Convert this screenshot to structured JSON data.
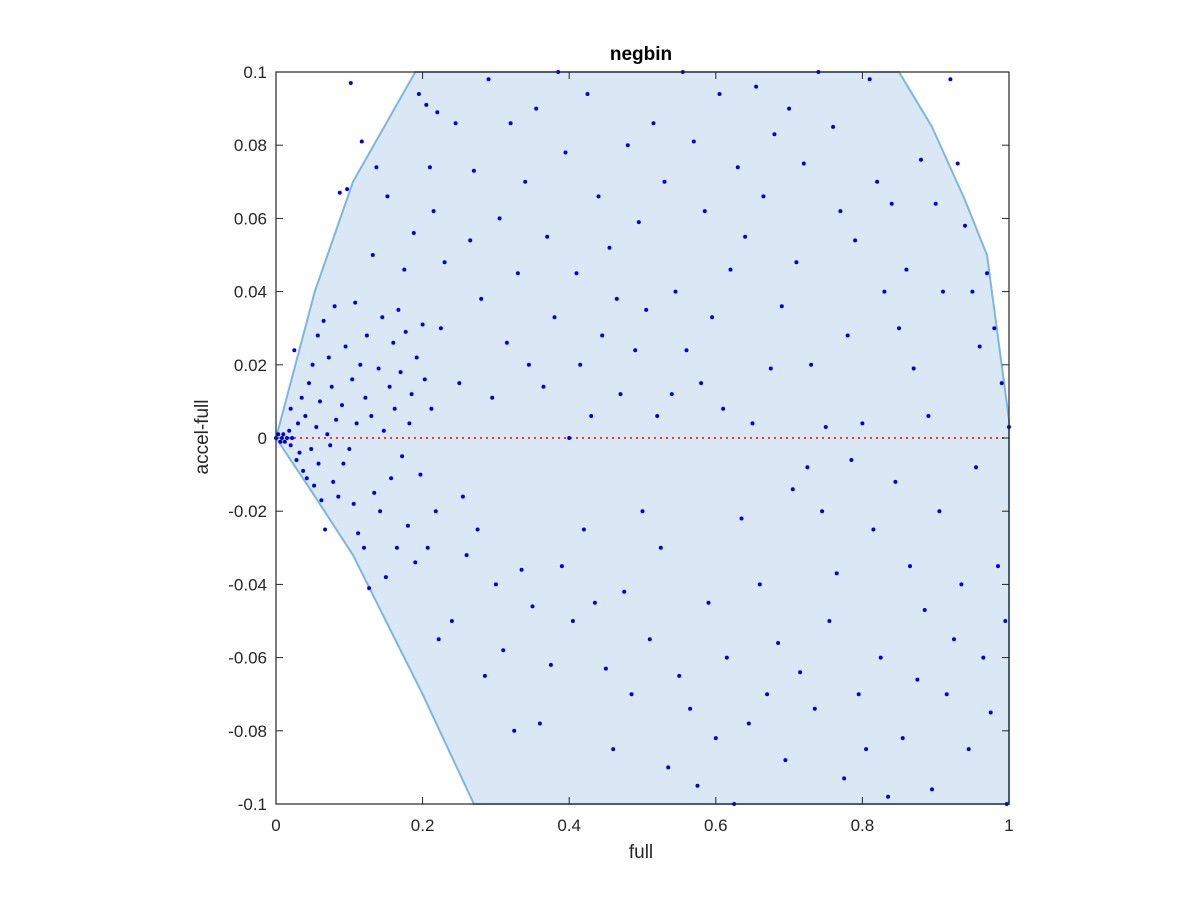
{
  "chart_data": {
    "type": "scatter",
    "title": "negbin",
    "xlabel": "full",
    "ylabel": "accel-full",
    "xlim": [
      0,
      1
    ],
    "ylim": [
      -0.1,
      0.1
    ],
    "x_ticks": [
      0,
      0.2,
      0.4,
      0.6,
      0.8,
      1
    ],
    "x_tick_labels": [
      "0",
      "0.2",
      "0.4",
      "0.6",
      "0.8",
      "1"
    ],
    "y_ticks": [
      -0.1,
      -0.08,
      -0.06,
      -0.04,
      -0.02,
      0,
      0.02,
      0.04,
      0.06,
      0.08,
      0.1
    ],
    "y_tick_labels": [
      "-0.1",
      "-0.08",
      "-0.06",
      "-0.04",
      "-0.02",
      "0",
      "0.02",
      "0.04",
      "0.06",
      "0.08",
      "0.1"
    ],
    "grid": false,
    "colors": {
      "points": "#0000e6",
      "region_fill": "#d9e8f4",
      "region_edge": "#7fb6dd",
      "zero_line": "#e83a3a",
      "axes": "#262626"
    },
    "region": {
      "description": "shaded feasible region",
      "boundary": [
        [
          0.0,
          0.0
        ],
        [
          0.053,
          0.04
        ],
        [
          0.105,
          0.07
        ],
        [
          0.19,
          0.1
        ],
        [
          0.85,
          0.1
        ],
        [
          0.895,
          0.085
        ],
        [
          0.94,
          0.065
        ],
        [
          0.97,
          0.05
        ],
        [
          1.0,
          0.005
        ],
        [
          1.0,
          -0.1
        ],
        [
          0.27,
          -0.1
        ],
        [
          0.2,
          -0.07
        ],
        [
          0.15,
          -0.05
        ],
        [
          0.105,
          -0.032
        ],
        [
          0.05,
          -0.015
        ],
        [
          0.0,
          0.0
        ]
      ]
    },
    "zero_line": {
      "y": 0,
      "style": "dotted"
    },
    "series": [
      {
        "points": [
          [
            0.0,
            0.0
          ],
          [
            0.003,
            0.001
          ],
          [
            0.006,
            -0.001
          ],
          [
            0.008,
            0.0
          ],
          [
            0.01,
            0.001
          ],
          [
            0.012,
            -0.001
          ],
          [
            0.015,
            0.0
          ],
          [
            0.018,
            0.002
          ],
          [
            0.02,
            -0.002
          ],
          [
            0.022,
            0.0
          ],
          [
            0.02,
            0.008
          ],
          [
            0.025,
            0.024
          ],
          [
            0.028,
            -0.006
          ],
          [
            0.03,
            0.004
          ],
          [
            0.032,
            -0.004
          ],
          [
            0.035,
            0.011
          ],
          [
            0.037,
            -0.009
          ],
          [
            0.04,
            0.006
          ],
          [
            0.042,
            -0.011
          ],
          [
            0.045,
            0.015
          ],
          [
            0.048,
            -0.003
          ],
          [
            0.05,
            0.02
          ],
          [
            0.052,
            -0.013
          ],
          [
            0.055,
            0.003
          ],
          [
            0.057,
            0.028
          ],
          [
            0.058,
            -0.007
          ],
          [
            0.06,
            0.01
          ],
          [
            0.062,
            -0.017
          ],
          [
            0.065,
            0.032
          ],
          [
            0.067,
            -0.025
          ],
          [
            0.07,
            0.001
          ],
          [
            0.072,
            0.022
          ],
          [
            0.074,
            -0.002
          ],
          [
            0.076,
            0.014
          ],
          [
            0.078,
            -0.012
          ],
          [
            0.08,
            0.036
          ],
          [
            0.082,
            0.005
          ],
          [
            0.085,
            -0.016
          ],
          [
            0.087,
            0.067
          ],
          [
            0.09,
            0.009
          ],
          [
            0.092,
            -0.007
          ],
          [
            0.095,
            0.025
          ],
          [
            0.097,
            0.068
          ],
          [
            0.1,
            -0.003
          ],
          [
            0.102,
            0.097
          ],
          [
            0.104,
            0.016
          ],
          [
            0.106,
            -0.018
          ],
          [
            0.108,
            0.037
          ],
          [
            0.11,
            0.004
          ],
          [
            0.112,
            -0.026
          ],
          [
            0.115,
            0.02
          ],
          [
            0.117,
            0.081
          ],
          [
            0.12,
            -0.03
          ],
          [
            0.122,
            0.011
          ],
          [
            0.124,
            0.028
          ],
          [
            0.127,
            -0.041
          ],
          [
            0.13,
            0.006
          ],
          [
            0.132,
            0.05
          ],
          [
            0.134,
            -0.015
          ],
          [
            0.137,
            0.074
          ],
          [
            0.14,
            0.019
          ],
          [
            0.142,
            -0.02
          ],
          [
            0.145,
            0.033
          ],
          [
            0.147,
            0.002
          ],
          [
            0.15,
            -0.038
          ],
          [
            0.152,
            0.066
          ],
          [
            0.155,
            0.014
          ],
          [
            0.157,
            -0.011
          ],
          [
            0.16,
            0.026
          ],
          [
            0.162,
            0.008
          ],
          [
            0.165,
            -0.03
          ],
          [
            0.167,
            0.035
          ],
          [
            0.17,
            0.018
          ],
          [
            0.172,
            -0.005
          ],
          [
            0.175,
            0.046
          ],
          [
            0.177,
            0.029
          ],
          [
            0.18,
            -0.024
          ],
          [
            0.182,
            0.004
          ],
          [
            0.185,
            0.012
          ],
          [
            0.188,
            0.056
          ],
          [
            0.19,
            -0.034
          ],
          [
            0.192,
            0.022
          ],
          [
            0.195,
            0.094
          ],
          [
            0.197,
            -0.01
          ],
          [
            0.2,
            0.031
          ],
          [
            0.203,
            0.016
          ],
          [
            0.205,
            0.091
          ],
          [
            0.207,
            -0.03
          ],
          [
            0.21,
            0.074
          ],
          [
            0.212,
            0.008
          ],
          [
            0.215,
            0.062
          ],
          [
            0.218,
            -0.02
          ],
          [
            0.22,
            0.089
          ],
          [
            0.222,
            -0.055
          ],
          [
            0.225,
            0.03
          ],
          [
            0.23,
            0.048
          ],
          [
            0.24,
            -0.05
          ],
          [
            0.245,
            0.086
          ],
          [
            0.25,
            0.015
          ],
          [
            0.255,
            -0.016
          ],
          [
            0.26,
            -0.032
          ],
          [
            0.265,
            0.054
          ],
          [
            0.27,
            0.073
          ],
          [
            0.275,
            -0.025
          ],
          [
            0.28,
            0.038
          ],
          [
            0.285,
            -0.065
          ],
          [
            0.29,
            0.098
          ],
          [
            0.295,
            0.011
          ],
          [
            0.3,
            -0.04
          ],
          [
            0.305,
            0.06
          ],
          [
            0.31,
            -0.058
          ],
          [
            0.315,
            0.026
          ],
          [
            0.32,
            0.086
          ],
          [
            0.325,
            -0.08
          ],
          [
            0.33,
            0.045
          ],
          [
            0.335,
            -0.036
          ],
          [
            0.34,
            0.07
          ],
          [
            0.345,
            0.02
          ],
          [
            0.35,
            -0.046
          ],
          [
            0.355,
            0.09
          ],
          [
            0.36,
            -0.078
          ],
          [
            0.365,
            0.014
          ],
          [
            0.37,
            0.055
          ],
          [
            0.375,
            -0.062
          ],
          [
            0.38,
            0.033
          ],
          [
            0.385,
            0.1
          ],
          [
            0.39,
            -0.035
          ],
          [
            0.395,
            0.078
          ],
          [
            0.4,
            0.0
          ],
          [
            0.405,
            -0.05
          ],
          [
            0.41,
            0.045
          ],
          [
            0.415,
            0.02
          ],
          [
            0.42,
            -0.025
          ],
          [
            0.425,
            0.094
          ],
          [
            0.43,
            0.006
          ],
          [
            0.435,
            -0.045
          ],
          [
            0.44,
            0.066
          ],
          [
            0.445,
            0.028
          ],
          [
            0.45,
            -0.063
          ],
          [
            0.455,
            0.052
          ],
          [
            0.46,
            -0.085
          ],
          [
            0.465,
            0.038
          ],
          [
            0.47,
            0.012
          ],
          [
            0.475,
            -0.042
          ],
          [
            0.48,
            0.08
          ],
          [
            0.485,
            -0.07
          ],
          [
            0.49,
            0.024
          ],
          [
            0.495,
            0.059
          ],
          [
            0.5,
            -0.02
          ],
          [
            0.505,
            0.035
          ],
          [
            0.51,
            -0.055
          ],
          [
            0.515,
            0.086
          ],
          [
            0.52,
            0.006
          ],
          [
            0.525,
            -0.03
          ],
          [
            0.53,
            0.07
          ],
          [
            0.535,
            -0.09
          ],
          [
            0.54,
            0.012
          ],
          [
            0.545,
            0.04
          ],
          [
            0.55,
            -0.065
          ],
          [
            0.555,
            0.1
          ],
          [
            0.56,
            0.024
          ],
          [
            0.565,
            -0.074
          ],
          [
            0.57,
            0.081
          ],
          [
            0.575,
            -0.095
          ],
          [
            0.58,
            0.015
          ],
          [
            0.585,
            0.062
          ],
          [
            0.59,
            -0.045
          ],
          [
            0.595,
            0.033
          ],
          [
            0.6,
            -0.082
          ],
          [
            0.605,
            0.094
          ],
          [
            0.61,
            0.008
          ],
          [
            0.615,
            -0.06
          ],
          [
            0.62,
            0.046
          ],
          [
            0.625,
            -0.1
          ],
          [
            0.63,
            0.074
          ],
          [
            0.635,
            -0.022
          ],
          [
            0.64,
            0.055
          ],
          [
            0.645,
            -0.078
          ],
          [
            0.65,
            0.004
          ],
          [
            0.655,
            0.096
          ],
          [
            0.66,
            -0.04
          ],
          [
            0.665,
            0.066
          ],
          [
            0.67,
            -0.07
          ],
          [
            0.675,
            0.019
          ],
          [
            0.68,
            0.083
          ],
          [
            0.685,
            -0.056
          ],
          [
            0.69,
            0.036
          ],
          [
            0.695,
            -0.088
          ],
          [
            0.7,
            0.09
          ],
          [
            0.705,
            -0.014
          ],
          [
            0.71,
            0.048
          ],
          [
            0.715,
            -0.064
          ],
          [
            0.72,
            0.075
          ],
          [
            0.725,
            -0.008
          ],
          [
            0.73,
            0.02
          ],
          [
            0.735,
            -0.074
          ],
          [
            0.74,
            0.1
          ],
          [
            0.745,
            -0.02
          ],
          [
            0.75,
            0.003
          ],
          [
            0.755,
            -0.05
          ],
          [
            0.76,
            0.085
          ],
          [
            0.765,
            -0.037
          ],
          [
            0.77,
            0.062
          ],
          [
            0.775,
            -0.093
          ],
          [
            0.78,
            0.028
          ],
          [
            0.785,
            -0.006
          ],
          [
            0.79,
            0.054
          ],
          [
            0.795,
            -0.07
          ],
          [
            0.8,
            0.004
          ],
          [
            0.805,
            -0.085
          ],
          [
            0.81,
            0.098
          ],
          [
            0.815,
            -0.025
          ],
          [
            0.82,
            0.07
          ],
          [
            0.825,
            -0.06
          ],
          [
            0.83,
            0.04
          ],
          [
            0.835,
            -0.098
          ],
          [
            0.84,
            0.064
          ],
          [
            0.845,
            -0.012
          ],
          [
            0.85,
            0.03
          ],
          [
            0.855,
            -0.082
          ],
          [
            0.86,
            0.046
          ],
          [
            0.865,
            -0.035
          ],
          [
            0.87,
            0.019
          ],
          [
            0.875,
            -0.066
          ],
          [
            0.88,
            0.076
          ],
          [
            0.885,
            -0.047
          ],
          [
            0.89,
            0.006
          ],
          [
            0.895,
            -0.096
          ],
          [
            0.9,
            0.064
          ],
          [
            0.905,
            -0.02
          ],
          [
            0.91,
            0.04
          ],
          [
            0.915,
            -0.07
          ],
          [
            0.92,
            0.098
          ],
          [
            0.925,
            -0.055
          ],
          [
            0.93,
            0.075
          ],
          [
            0.935,
            -0.04
          ],
          [
            0.94,
            0.058
          ],
          [
            0.945,
            -0.085
          ],
          [
            0.95,
            0.04
          ],
          [
            0.955,
            -0.008
          ],
          [
            0.96,
            0.025
          ],
          [
            0.965,
            -0.06
          ],
          [
            0.97,
            0.045
          ],
          [
            0.975,
            -0.075
          ],
          [
            0.98,
            0.03
          ],
          [
            0.985,
            -0.035
          ],
          [
            0.99,
            0.015
          ],
          [
            0.995,
            -0.05
          ],
          [
            1.0,
            0.003
          ],
          [
            0.997,
            -0.1
          ]
        ]
      }
    ]
  }
}
